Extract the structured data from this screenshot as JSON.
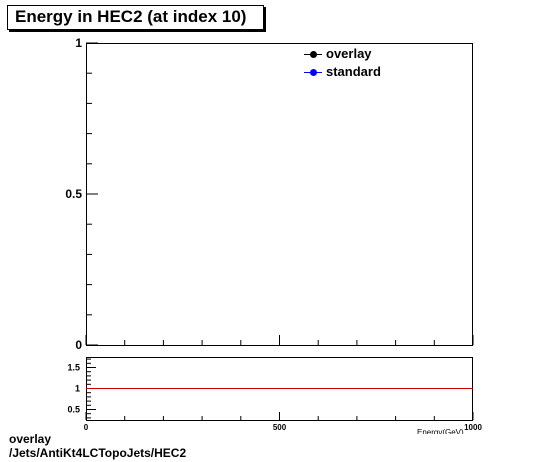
{
  "title": "Energy in HEC2 (at index 10)",
  "footer": {
    "line1": "overlay",
    "line2": "/Jets/AntiKt4LCTopoJets/HEC2"
  },
  "colors": {
    "overlay": "#000000",
    "standard": "#0000ff",
    "ratio_line": "#cc0000"
  },
  "chart_data": [
    {
      "type": "line",
      "title": "Energy in HEC2 (at index 10)",
      "xlabel": "Energy(GeV)",
      "ylabel": "",
      "xlim": [
        0,
        1000
      ],
      "ylim": [
        0,
        1
      ],
      "x_ticks": [
        "0",
        "500",
        "1000"
      ],
      "y_ticks": [
        "0",
        "0.5",
        "1"
      ],
      "legend_position": "top-right",
      "series": [
        {
          "name": "overlay",
          "color": "#000000",
          "values": []
        },
        {
          "name": "standard",
          "color": "#0000ff",
          "values": []
        }
      ]
    },
    {
      "type": "line",
      "xlim": [
        0,
        1000
      ],
      "ylim": [
        0.25,
        1.75
      ],
      "y_ticks": [
        "0.5",
        "1",
        "1.5"
      ],
      "reference_line": 1,
      "series": []
    }
  ]
}
